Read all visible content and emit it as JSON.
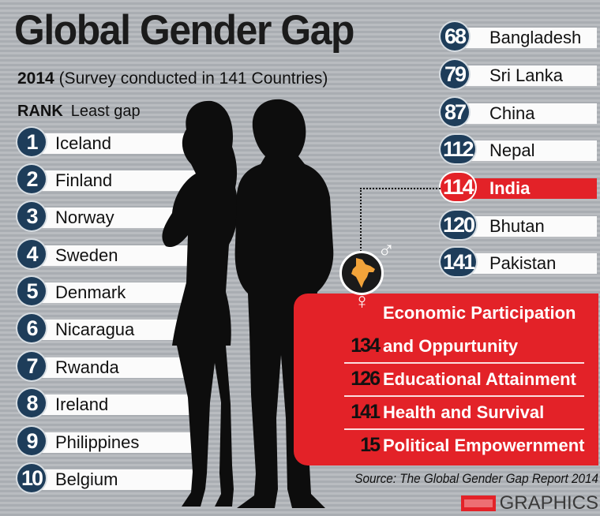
{
  "title": "Global Gender Gap",
  "subtitle": {
    "year": "2014",
    "note": "(Survey conducted in 141 Countries)"
  },
  "rank_header": {
    "rank": "RANK",
    "least_gap": "Least gap"
  },
  "left_ranks": [
    {
      "rank": "1",
      "country": "Iceland"
    },
    {
      "rank": "2",
      "country": "Finland"
    },
    {
      "rank": "3",
      "country": "Norway"
    },
    {
      "rank": "4",
      "country": "Sweden"
    },
    {
      "rank": "5",
      "country": "Denmark"
    },
    {
      "rank": "6",
      "country": "Nicaragua"
    },
    {
      "rank": "7",
      "country": "Rwanda"
    },
    {
      "rank": "8",
      "country": "Ireland"
    },
    {
      "rank": "9",
      "country": "Philippines"
    },
    {
      "rank": "10",
      "country": "Belgium"
    }
  ],
  "right_ranks": [
    {
      "rank": "68",
      "country": "Bangladesh"
    },
    {
      "rank": "79",
      "country": "Sri Lanka"
    },
    {
      "rank": "87",
      "country": "China"
    },
    {
      "rank": "112",
      "country": "Nepal"
    },
    {
      "rank": "114",
      "country": "India",
      "highlight": true
    },
    {
      "rank": "120",
      "country": "Bhutan"
    },
    {
      "rank": "141",
      "country": "Pakistan"
    }
  ],
  "india_indicators": [
    {
      "rank": "",
      "label": "Economic Participation"
    },
    {
      "rank": "134",
      "label": "and Oppurtunity"
    },
    {
      "rank": "126",
      "label": "Educational Attainment"
    },
    {
      "rank": "141",
      "label": "Health and Survival"
    },
    {
      "rank": "15",
      "label": "Political Empowernment"
    }
  ],
  "source": "Source: The Global Gender Gap Report 2014",
  "credit": "GRAPHICS",
  "colors": {
    "badge": "#1e3d5a",
    "highlight": "#e32228",
    "background": "#b3b6ba",
    "silhouette": "#0d0d0d"
  },
  "icons": [
    "india-map-icon",
    "male-symbol-icon",
    "female-symbol-icon",
    "woman-silhouette-icon",
    "man-silhouette-icon",
    "ht-logo-icon"
  ]
}
